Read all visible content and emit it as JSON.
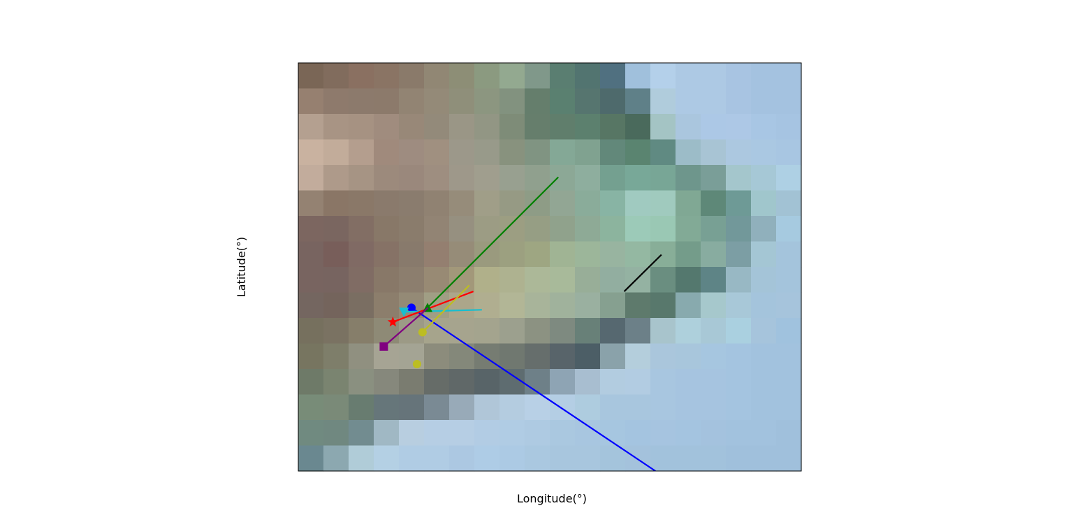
{
  "map": {
    "xlabel": "Longitude(°)",
    "ylabel": "Latitude(°)",
    "grid": false,
    "basemap": {
      "rows": 16,
      "cols": 20,
      "row_bands": [
        [
          "#7a6656",
          "#816c5d",
          "#8a7061",
          "#8a7464",
          "#8a7a6a",
          "#918774",
          "#8d8e76",
          "#8b9a80",
          "#93a990",
          "#80988a",
          "#5a7e71",
          "#527470",
          "#507080",
          "#a0c0dc",
          "#b4d0ea",
          "#adc9e4",
          "#adc9e4",
          "#a8c4e2",
          "#a4c2e0",
          "#a4c2e0"
        ],
        [
          "#968070",
          "#8e7a6c",
          "#8c7a6c",
          "#8c7a6b",
          "#928473",
          "#948a78",
          "#8f8f7a",
          "#8c9680",
          "#82927f",
          "#657e6c",
          "#5a8070",
          "#56756f",
          "#4e6a6c",
          "#5f8088",
          "#b0ccdc",
          "#adc9e4",
          "#adc9e4",
          "#a8c4e2",
          "#a4c2e0",
          "#a4c2e0"
        ],
        [
          "#b4a090",
          "#a89484",
          "#a69282",
          "#a08c7e",
          "#988878",
          "#938a7a",
          "#9a9686",
          "#929684",
          "#7e8c78",
          "#667e6c",
          "#607e6c",
          "#5c806e",
          "#577664",
          "#4a6a5c",
          "#a4c4c4",
          "#aac6de",
          "#acc8e6",
          "#adc8e6",
          "#a8c6e4",
          "#a6c4e2"
        ],
        [
          "#c9b2a0",
          "#c2ac9a",
          "#b49e8e",
          "#a08a7c",
          "#9e8c80",
          "#a09080",
          "#9c988a",
          "#989a8a",
          "#88927e",
          "#809482",
          "#84a896",
          "#80a290",
          "#62887a",
          "#5a8470",
          "#608a82",
          "#9cbcc8",
          "#a8c4d4",
          "#acc8e0",
          "#aac8e2",
          "#a8c6e2"
        ],
        [
          "#c2ac9c",
          "#ae9a8a",
          "#a69484",
          "#9c8a7c",
          "#9a887c",
          "#9e8e80",
          "#9e988a",
          "#a09e8e",
          "#98a090",
          "#90a08e",
          "#8ca896",
          "#8eae9e",
          "#74a090",
          "#78a898",
          "#78a696",
          "#6e968c",
          "#7a9e98",
          "#a4c6cc",
          "#a6c8d6",
          "#aed0e4"
        ],
        [
          "#948272",
          "#8a7666",
          "#8a7868",
          "#8a7a6c",
          "#8a7c6e",
          "#908272",
          "#968c7a",
          "#a09e88",
          "#969a84",
          "#8e9c86",
          "#92a694",
          "#8aac9a",
          "#88b4a4",
          "#a0cac0",
          "#a0cabe",
          "#80a894",
          "#5e8878",
          "#6e9a96",
          "#a0c6cc",
          "#a2c2d4"
        ],
        [
          "#7c6660",
          "#7a6660",
          "#826e64",
          "#887868",
          "#8a7c6c",
          "#928474",
          "#969080",
          "#9c9c84",
          "#9c9e82",
          "#969e84",
          "#90a28c",
          "#8eaa96",
          "#8cb49e",
          "#9ccab8",
          "#9ac8b4",
          "#82aa96",
          "#78a094",
          "#72989a",
          "#90b0bc",
          "#a6cae0"
        ],
        [
          "#786460",
          "#785e5a",
          "#806a64",
          "#867266",
          "#887a6c",
          "#947f70",
          "#968c78",
          "#9a9a7e",
          "#9ca080",
          "#9ea682",
          "#a0b494",
          "#9cb69a",
          "#98b4a0",
          "#94b8a2",
          "#88ae98",
          "#749c8a",
          "#88aca0",
          "#7c9ea4",
          "#a4c6d4",
          "#a4c4dc"
        ],
        [
          "#786460",
          "#776460",
          "#806c64",
          "#887868",
          "#8c7e6e",
          "#988a74",
          "#a2987a",
          "#b0b08a",
          "#aeb290",
          "#acb898",
          "#a8ba9a",
          "#98ae98",
          "#92aea0",
          "#94b2a2",
          "#6a8e80",
          "#54786e",
          "#5e8486",
          "#98b8c4",
          "#a4c4d8",
          "#a4c4dc"
        ],
        [
          "#746660",
          "#74645c",
          "#7a6e62",
          "#8c7e6c",
          "#948a76",
          "#a09e84",
          "#aca68a",
          "#b0ae90",
          "#b2b696",
          "#a8b49a",
          "#a0b29c",
          "#9ab0a0",
          "#86a090",
          "#5e7a6c",
          "#58786c",
          "#88aaae",
          "#a6c8cc",
          "#a8c8d8",
          "#a4c4dc",
          "#a6c4dc"
        ],
        [
          "#76705e",
          "#7a7262",
          "#867e6a",
          "#8e8a76",
          "#9c9a86",
          "#a6a48c",
          "#a6a48e",
          "#a4a48e",
          "#9ca08e",
          "#8c9282",
          "#7e8a80",
          "#688078",
          "#566870",
          "#6c8088",
          "#a8c4cc",
          "#aed0dc",
          "#a8c8d6",
          "#aad0e0",
          "#a6c4dc",
          "#a0c2de"
        ],
        [
          "#777560",
          "#7e7e6a",
          "#909080",
          "#a6a494",
          "#a4a494",
          "#8c8c7c",
          "#84887a",
          "#767c72",
          "#707870",
          "#666e6c",
          "#58646a",
          "#4c5e66",
          "#8aa2aa",
          "#b4cedc",
          "#aac6dc",
          "#a8c6dc",
          "#a6c6e0",
          "#a4c4e0",
          "#a2c2de",
          "#a2c2de"
        ],
        [
          "#6e7a68",
          "#7a8470",
          "#8a9080",
          "#86887c",
          "#7a7c70",
          "#666c68",
          "#606868",
          "#586468",
          "#5e6c70",
          "#6e8088",
          "#8ea4b4",
          "#a8bed0",
          "#b2cce0",
          "#b2cce2",
          "#a8c6e0",
          "#a6c4e0",
          "#a6c4e0",
          "#a4c4e0",
          "#a2c2de",
          "#a2c2de"
        ],
        [
          "#788c78",
          "#7a8a78",
          "#687c70",
          "#66767a",
          "#66747a",
          "#7a8a94",
          "#98aab8",
          "#b0c6d8",
          "#b4cce0",
          "#b8d0e6",
          "#b4cee4",
          "#aeccdf",
          "#a8c6de",
          "#a8c6de",
          "#a8c6e0",
          "#a6c4e0",
          "#a6c4e0",
          "#a4c4e0",
          "#a2c2de",
          "#a2c2de"
        ],
        [
          "#708a80",
          "#708880",
          "#728c90",
          "#a0b8c4",
          "#b8cee0",
          "#b6cee4",
          "#b6cee4",
          "#b2cce4",
          "#b0cce4",
          "#aecae2",
          "#aac8e0",
          "#a8c6e0",
          "#a6c6e0",
          "#a4c4e0",
          "#a6c4e0",
          "#a4c4e0",
          "#a4c2de",
          "#a2c2de",
          "#a2c2de",
          "#a0c0dc"
        ],
        [
          "#6a8890",
          "#8ca8b0",
          "#b0ccd8",
          "#b4d0e4",
          "#b0cce4",
          "#b0cce4",
          "#acc8e2",
          "#aecce6",
          "#accae4",
          "#aac8e0",
          "#a8c6de",
          "#a8c6de",
          "#a4c4dc",
          "#a4c2dc",
          "#a2c2dc",
          "#a2c2dc",
          "#a2c2dc",
          "#a0c0dc",
          "#a0c0dc",
          "#a0c0dc"
        ]
      ]
    },
    "tracks": [
      {
        "name": "blue",
        "color": "#0000ff",
        "marker": "circle",
        "end": [
          0.225,
          0.4
        ],
        "start": [
          0.71,
          0.0
        ]
      },
      {
        "name": "cyan",
        "color": "#17becf",
        "marker": "triangle-down",
        "end": [
          0.21,
          0.39
        ],
        "start": [
          0.365,
          0.395
        ]
      },
      {
        "name": "red",
        "color": "#ff0000",
        "marker": "star",
        "end": [
          0.188,
          0.365
        ],
        "start": [
          0.348,
          0.44
        ]
      },
      {
        "name": "green",
        "color": "#008000",
        "marker": "triangle-up",
        "end": [
          0.257,
          0.4
        ],
        "start": [
          0.517,
          0.72
        ]
      },
      {
        "name": "purple",
        "color": "#800080",
        "marker": "square",
        "end": [
          0.17,
          0.305
        ],
        "start": [
          0.258,
          0.4
        ]
      },
      {
        "name": "olive",
        "color": "#bcbd22",
        "marker": "circle",
        "end": [
          0.247,
          0.34
        ],
        "start": [
          0.34,
          0.455
        ]
      },
      {
        "name": "olive-2",
        "color": "#bcbd22",
        "marker": "circle",
        "end": [
          0.236,
          0.262
        ],
        "start": null
      },
      {
        "name": "black",
        "color": "#000000",
        "marker": "none",
        "end": [
          0.648,
          0.44
        ],
        "start": [
          0.722,
          0.53
        ]
      }
    ]
  }
}
